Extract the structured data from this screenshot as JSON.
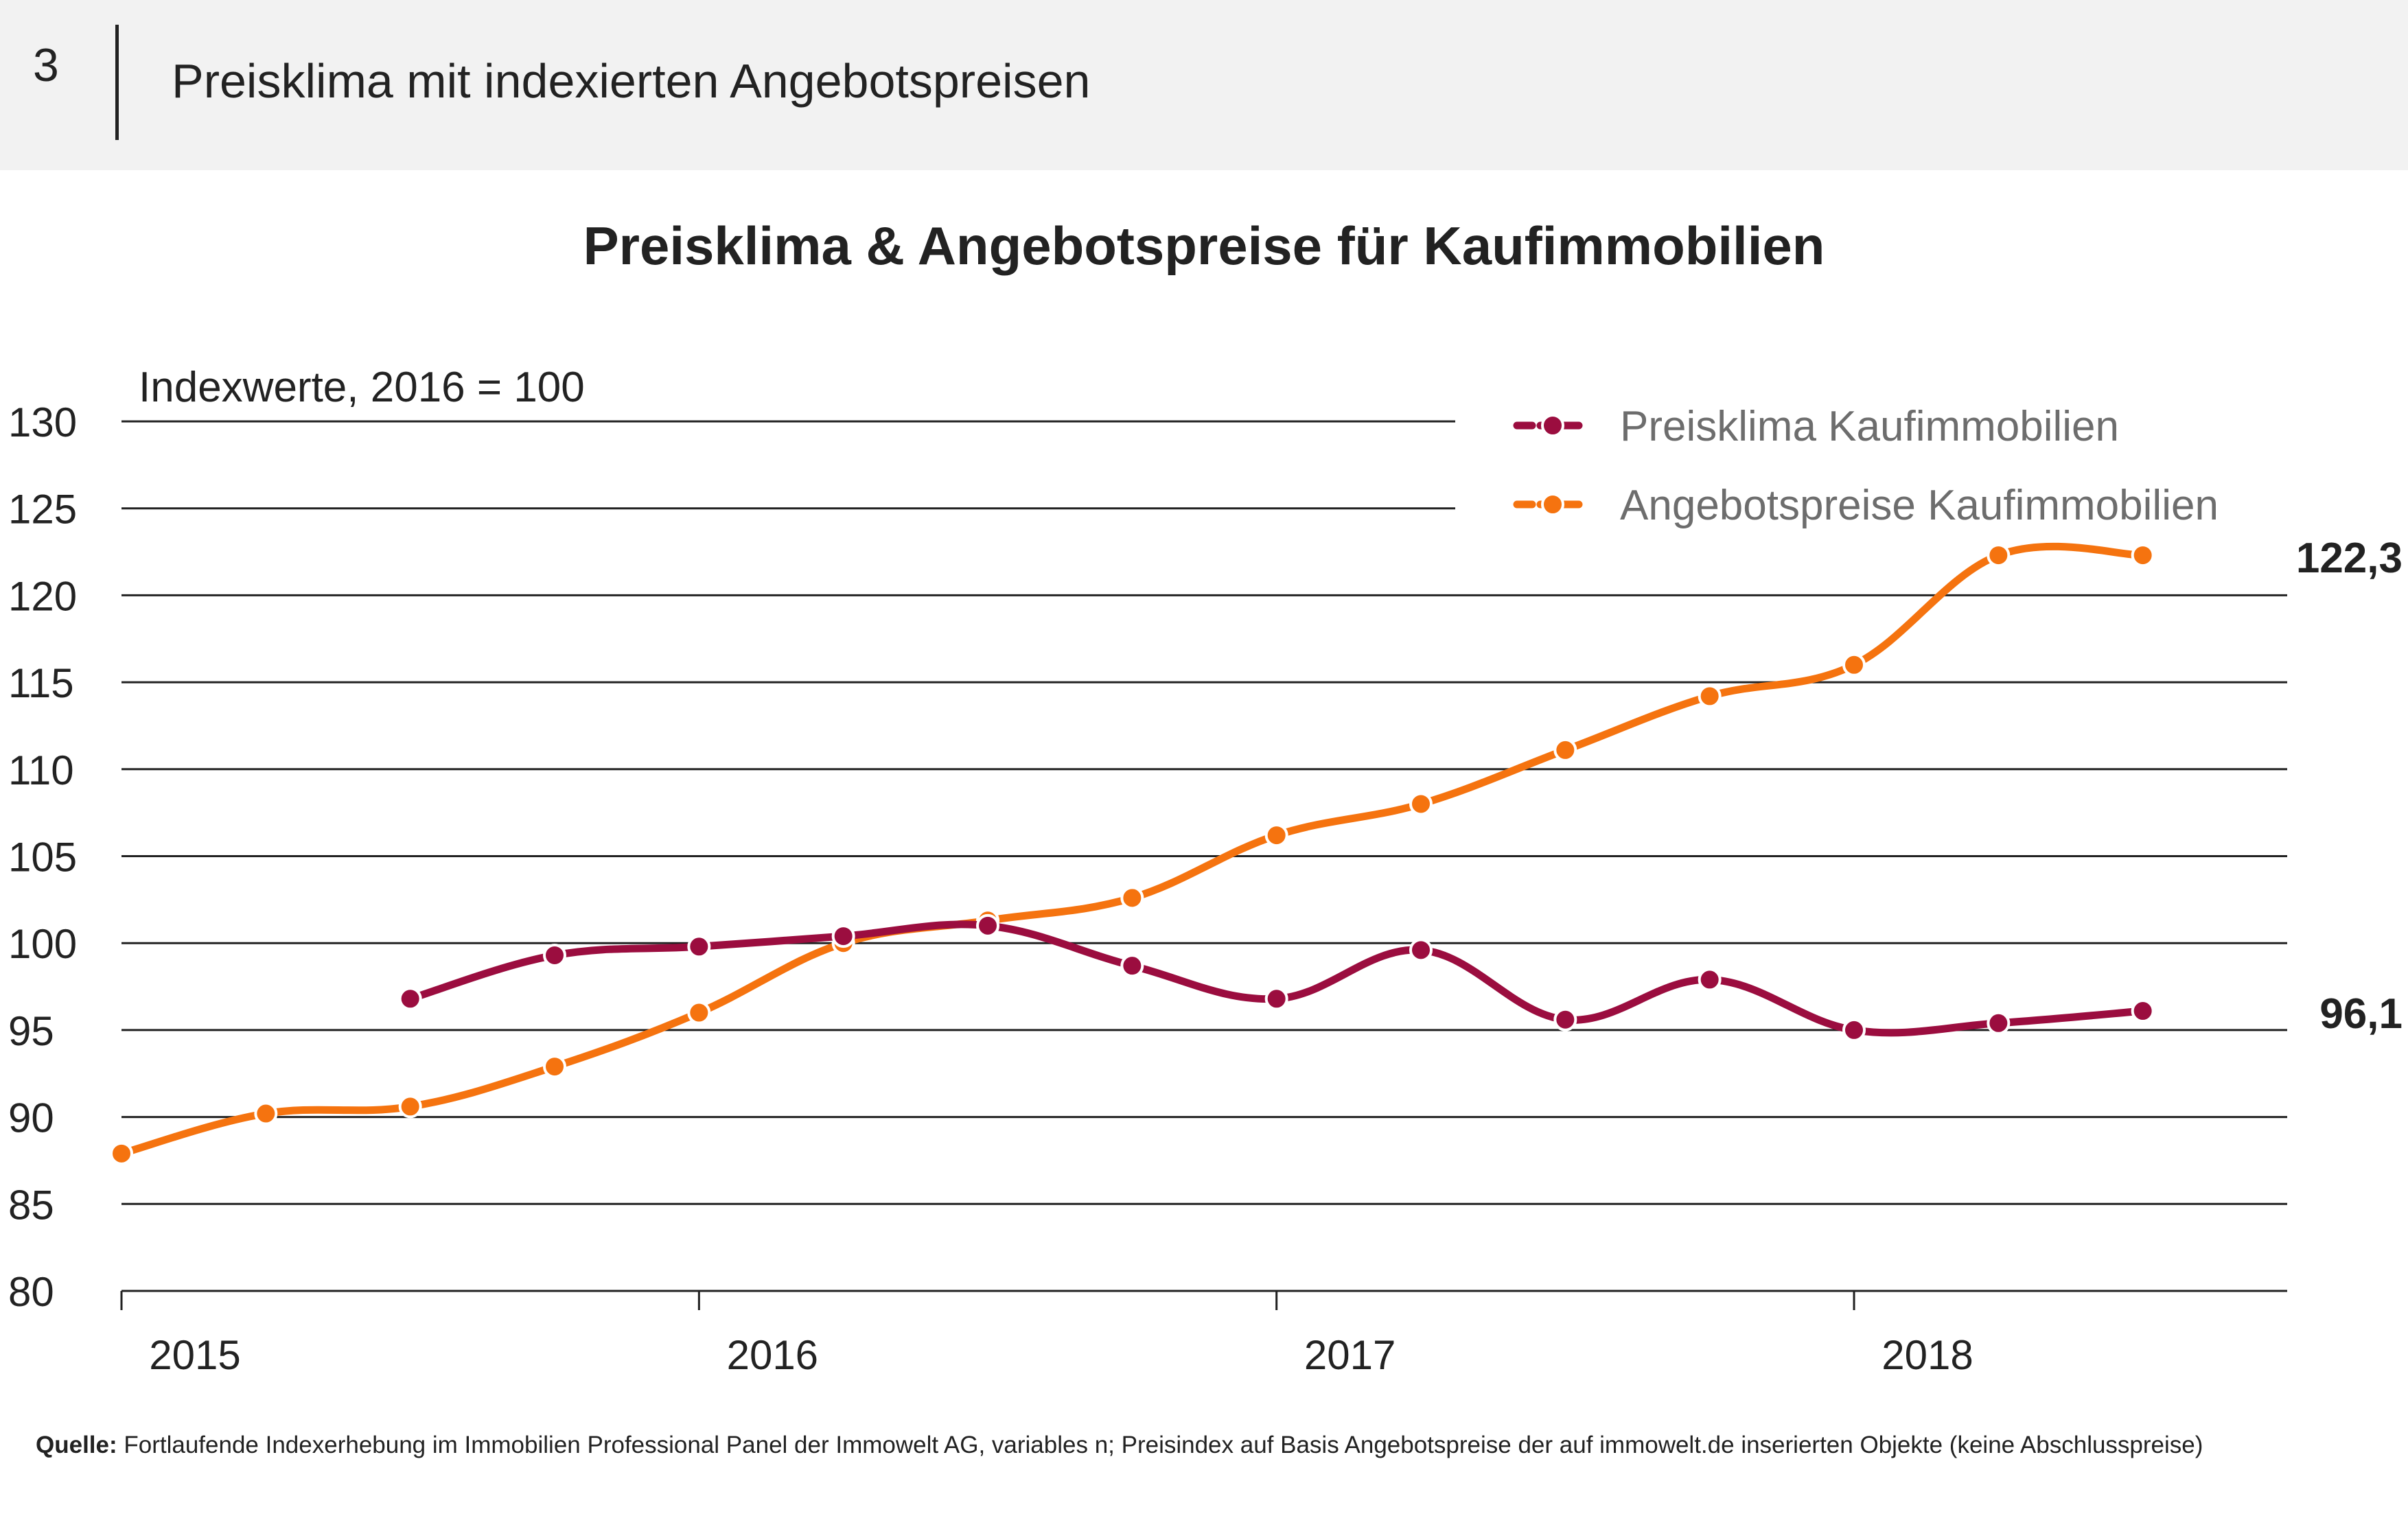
{
  "header": {
    "number": "3",
    "title": "Preisklima mit indexierten Angebotspreisen"
  },
  "chart_data": {
    "type": "line",
    "title": "Preisklima & Angebotspreise für Kaufimmobilien",
    "ylabel": "Indexwerte, 2016 = 100",
    "ylim": [
      80,
      130
    ],
    "yticks": [
      "130",
      "125",
      "120",
      "115",
      "110",
      "105",
      "100",
      "95",
      "90",
      "85",
      "80"
    ],
    "xlim": [
      2015,
      2018.75
    ],
    "xticks": [
      "2015",
      "2016",
      "2017",
      "2018"
    ],
    "grid": true,
    "legend_position": "top-right",
    "series": [
      {
        "name": "Preisklima Kaufimmobilien",
        "color": "#9b0d3f",
        "x": [
          2015.5,
          2015.75,
          2016.0,
          2016.25,
          2016.5,
          2016.75,
          2017.0,
          2017.25,
          2017.5,
          2017.75,
          2018.0,
          2018.25,
          2018.5
        ],
        "values": [
          96.8,
          99.3,
          99.8,
          100.4,
          101.0,
          98.7,
          96.8,
          99.6,
          95.6,
          97.9,
          95.0,
          95.4,
          96.1
        ],
        "end_label": "96,1"
      },
      {
        "name": "Angebotspreise Kaufimmobilien",
        "color": "#f5730f",
        "x": [
          2015.0,
          2015.25,
          2015.5,
          2015.75,
          2016.0,
          2016.25,
          2016.5,
          2016.75,
          2017.0,
          2017.25,
          2017.5,
          2017.75,
          2018.0,
          2018.25,
          2018.5
        ],
        "values": [
          87.9,
          90.2,
          90.6,
          92.9,
          96.0,
          100.0,
          101.3,
          102.6,
          106.2,
          108.0,
          111.1,
          114.2,
          116.0,
          122.3,
          122.3
        ],
        "end_label": "122,3"
      }
    ]
  },
  "source": {
    "label": "Quelle:",
    "text": "Fortlaufende Indexerhebung im Immobilien Professional Panel der Immowelt AG, variables n; Preisindex auf Basis Angebotspreise der auf immowelt.de inserierten Objekte (keine Abschlusspreise)"
  }
}
